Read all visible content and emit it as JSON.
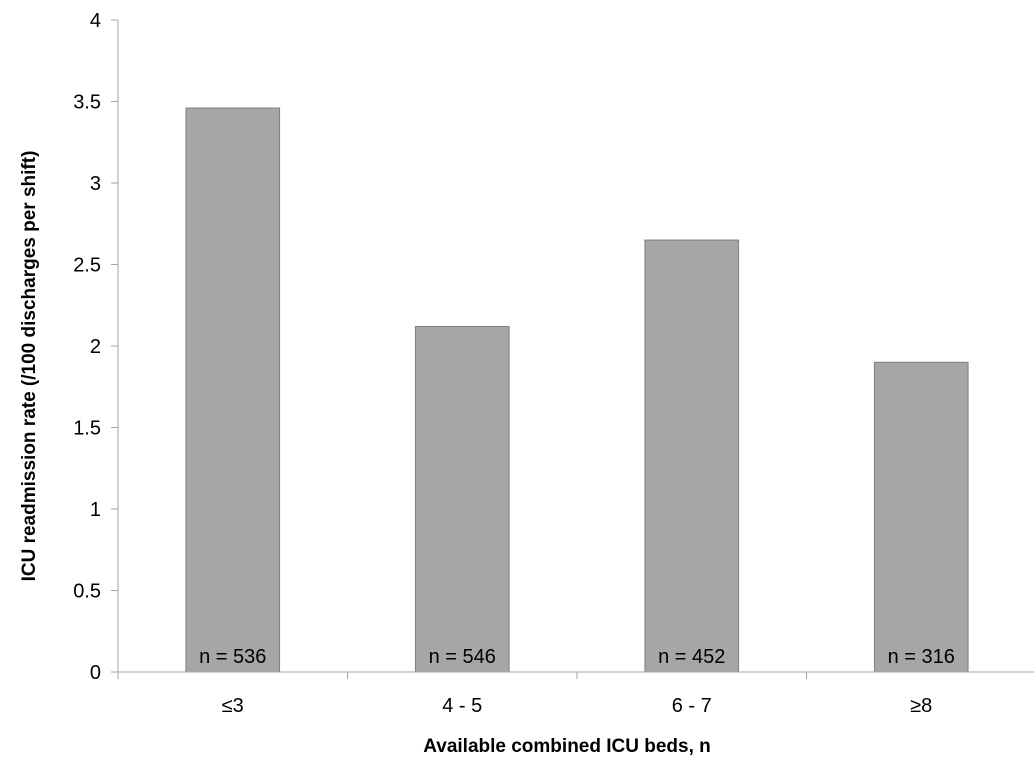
{
  "chart_data": {
    "type": "bar",
    "title": "",
    "xlabel": "Available combined ICU beds, n",
    "ylabel": "ICU readmission rate (/100 discharges per shift)",
    "ylim": [
      0,
      4
    ],
    "yticks": [
      0,
      0.5,
      1,
      1.5,
      2,
      2.5,
      3,
      3.5,
      4
    ],
    "ytick_labels": [
      "0",
      "0.5",
      "1",
      "1.5",
      "2",
      "2.5",
      "3",
      "3.5",
      "4"
    ],
    "categories": [
      "≤3",
      "4 - 5",
      "6 - 7",
      "≥8"
    ],
    "values": [
      3.46,
      2.12,
      2.65,
      1.9
    ],
    "bar_labels": [
      "n = 536",
      "n = 546",
      "n = 452",
      "n = 316"
    ],
    "grid": false,
    "legend": "none",
    "bar_color": "#a6a6a6",
    "bar_edge_color": "#7f7f7f",
    "axis_color": "#a6a6a6"
  }
}
